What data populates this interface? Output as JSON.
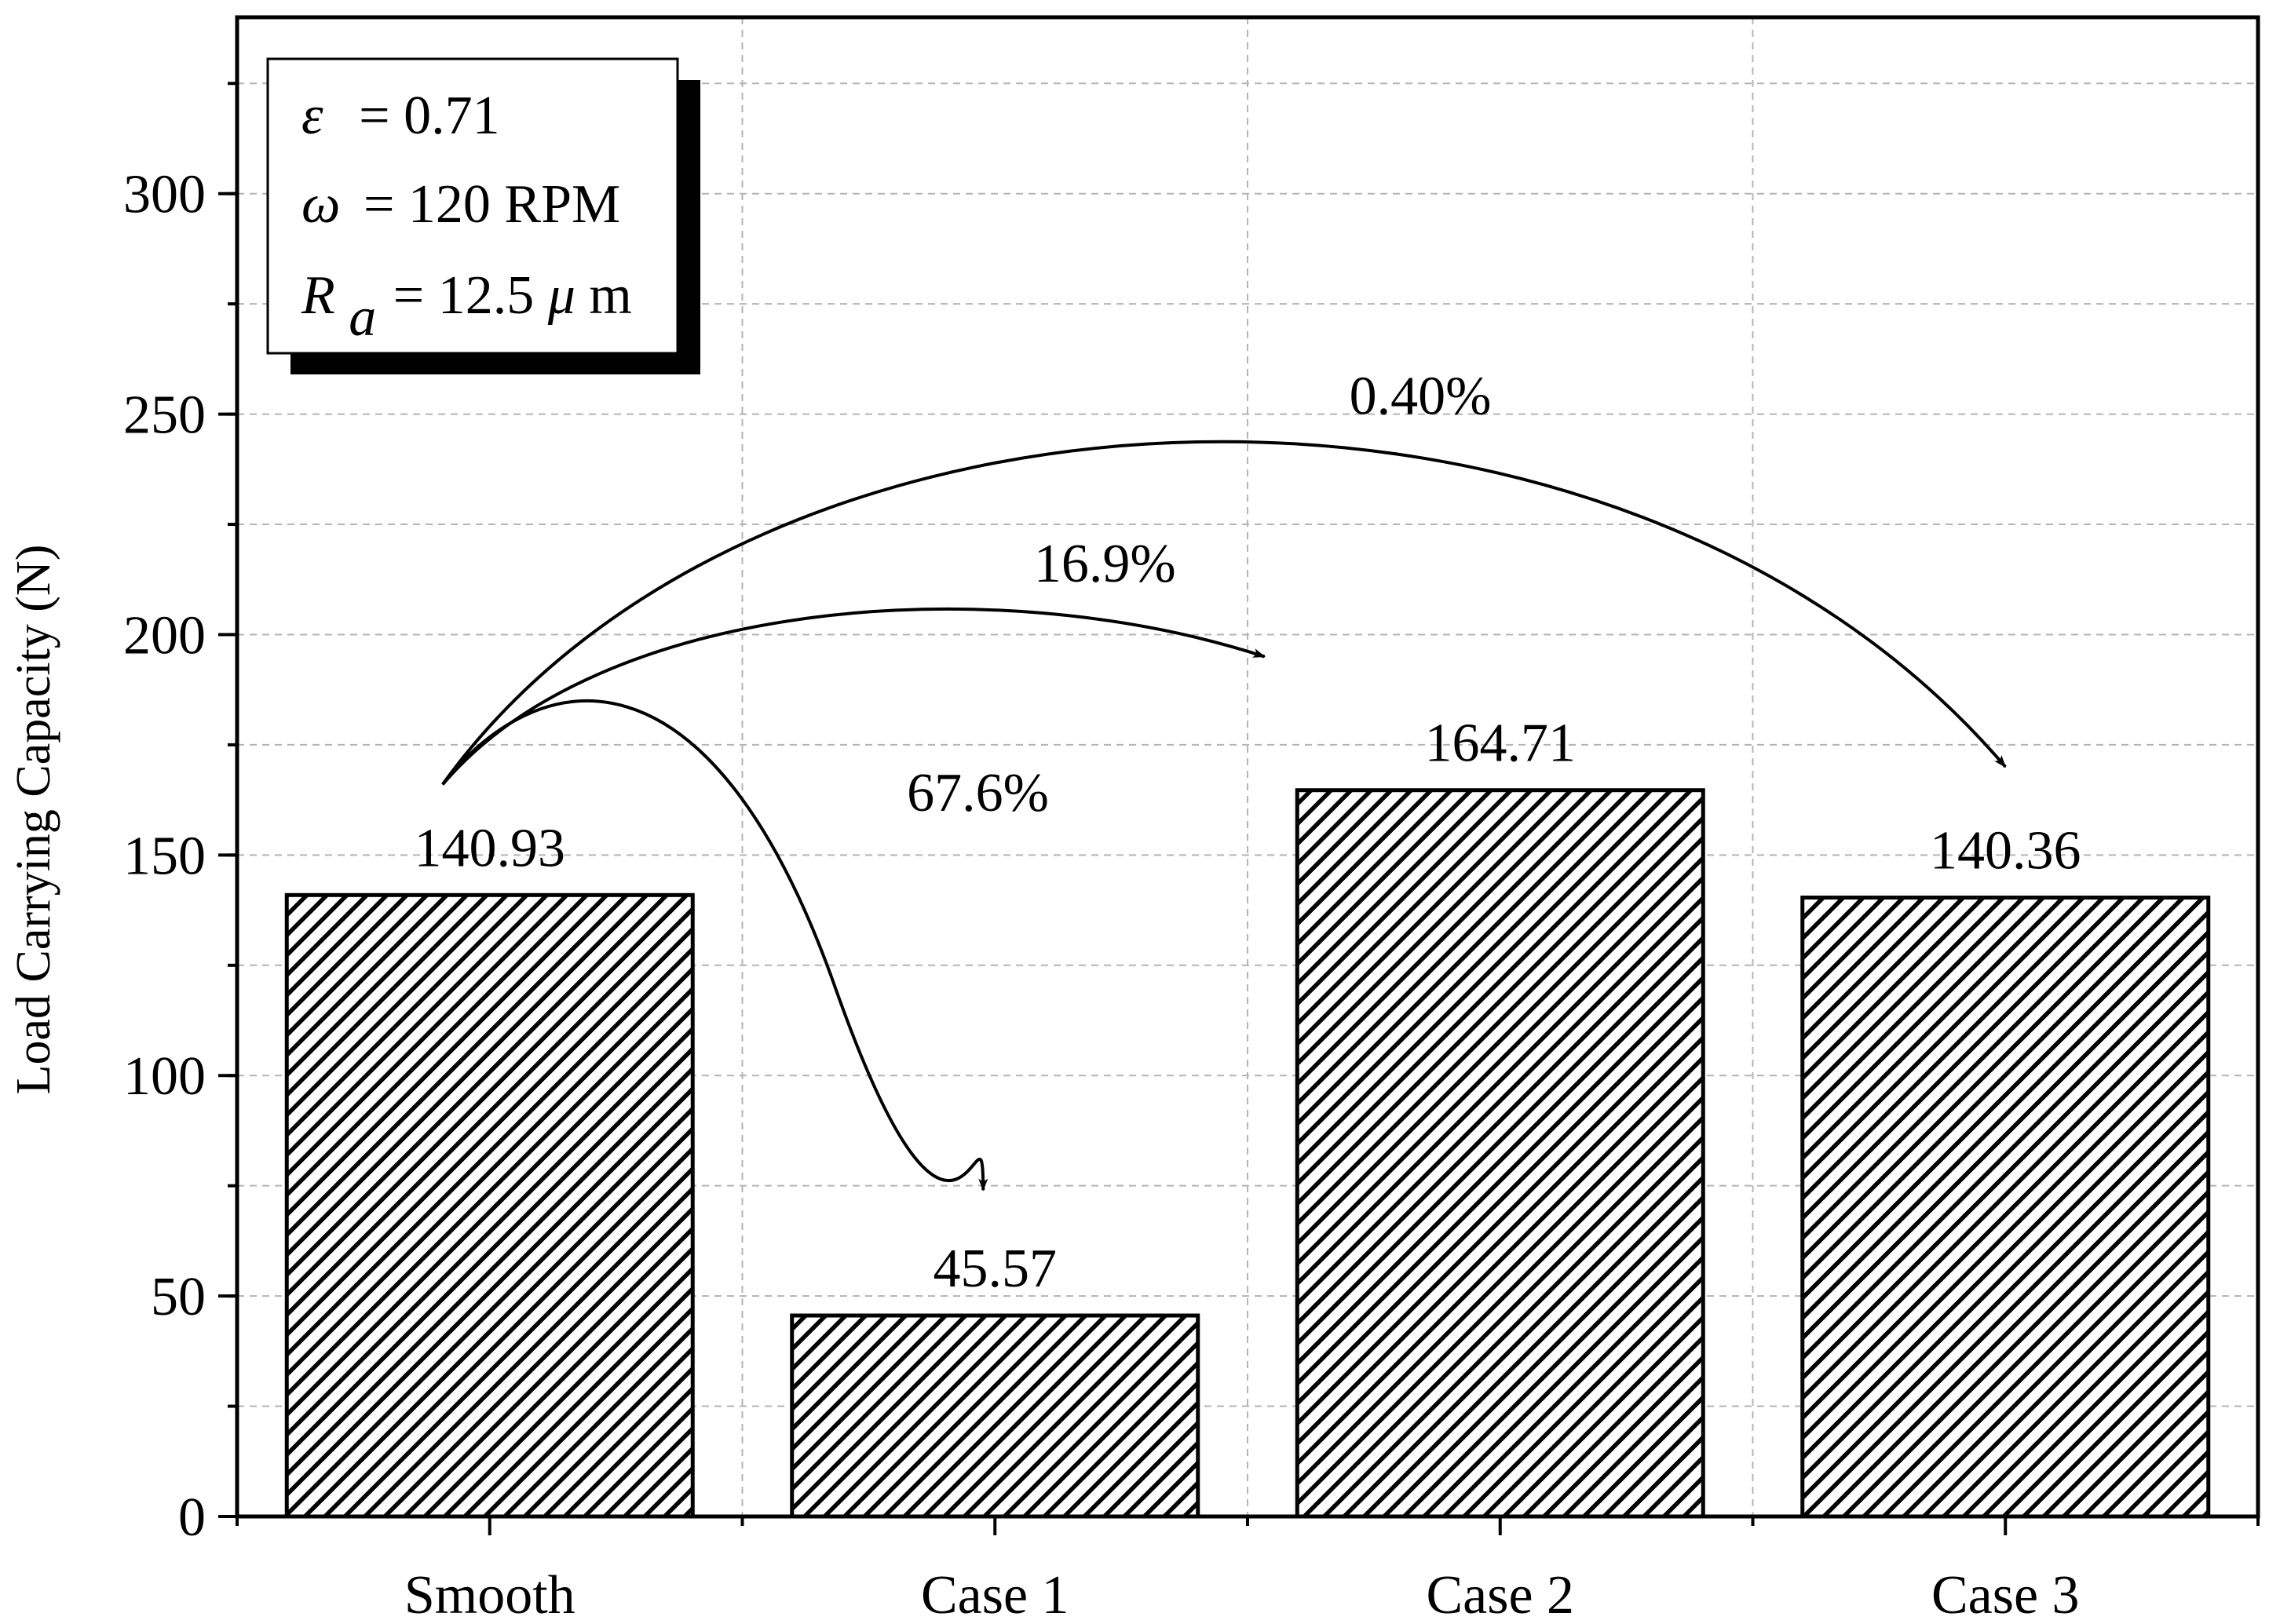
{
  "chart_data": {
    "type": "bar",
    "title": "",
    "xlabel": "",
    "ylabel": "Load Carrying Capacity (N)",
    "categories": [
      "Smooth",
      "Case 1",
      "Case 2",
      "Case 3"
    ],
    "values": [
      140.93,
      45.57,
      164.71,
      140.36
    ],
    "value_labels": [
      "140.93",
      "45.57",
      "164.71",
      "140.36"
    ],
    "ylim": [
      0,
      340
    ],
    "yticks": [
      0,
      50,
      100,
      150,
      200,
      250,
      300
    ],
    "grid": true,
    "bar_fill": "diagonal-hatch",
    "colors": {
      "bar_stroke": "#000000",
      "hatch": "#000000",
      "grid": "#b4b4b4",
      "background": "#ffffff"
    },
    "annotations": [
      {
        "from": "Smooth",
        "to": "Case 1",
        "label": "67.6%"
      },
      {
        "from": "Smooth",
        "to": "Case 2",
        "label": "16.9%"
      },
      {
        "from": "Smooth",
        "to": "Case 3",
        "label": "0.40%"
      }
    ],
    "legend_box": {
      "position": "top-left",
      "lines": [
        {
          "symbol": "ε",
          "rest": "= 0.71"
        },
        {
          "symbol": "ω",
          "rest": "= 120 RPM"
        },
        {
          "symbol": "R",
          "sub": "a",
          "rest": "= 12.5 ",
          "unit_symbol": "μ",
          "unit": "m"
        }
      ]
    }
  }
}
